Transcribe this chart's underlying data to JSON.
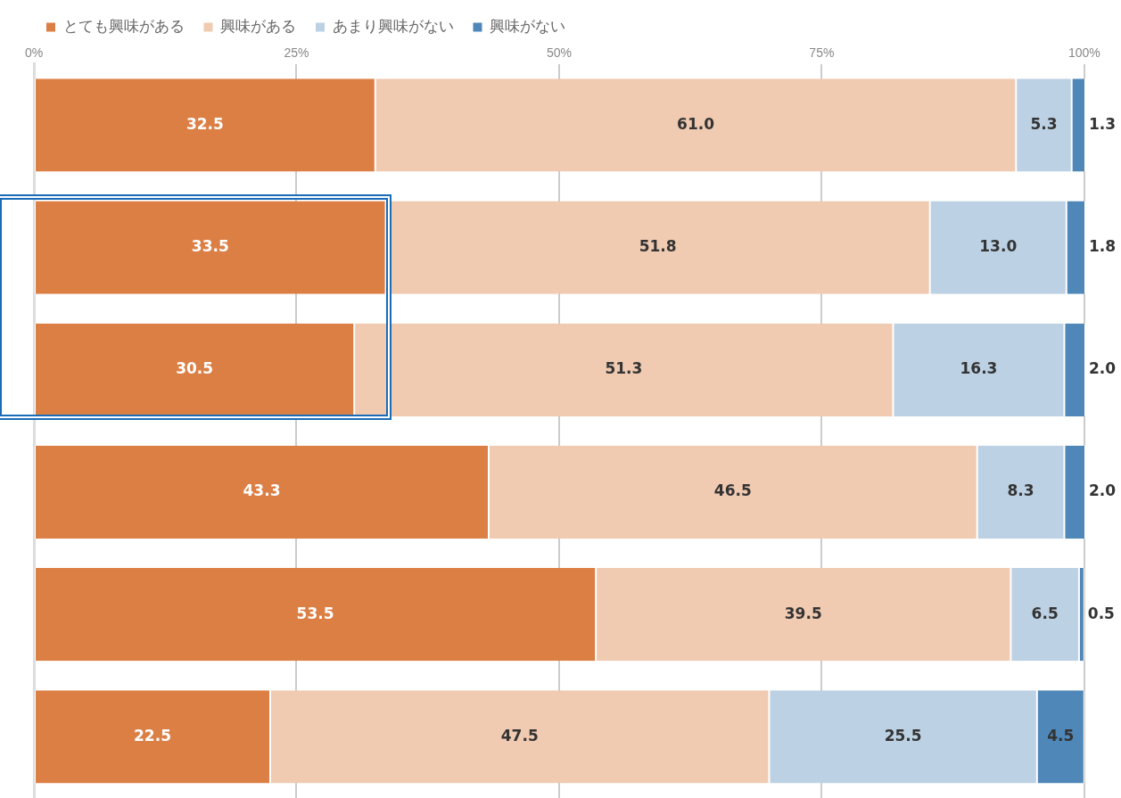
{
  "chart_data": {
    "type": "bar",
    "orientation": "horizontal",
    "stacked": true,
    "categories": [
      null,
      null,
      null,
      null,
      null,
      null
    ],
    "series": [
      {
        "name": "とても興味がある",
        "color": "#dc7f45",
        "values": [
          32.5,
          33.5,
          30.5,
          43.3,
          53.5,
          22.5
        ],
        "value_labels": [
          "32.5",
          "33.5",
          "30.5",
          "43.3",
          "53.5",
          "22.5"
        ]
      },
      {
        "name": "興味がある",
        "color": "#f0cab1",
        "values": [
          61.0,
          51.8,
          51.3,
          46.5,
          39.5,
          47.5
        ],
        "value_labels": [
          "61.0",
          "51.8",
          "51.3",
          "46.5",
          "39.5",
          "47.5"
        ]
      },
      {
        "name": "あまり興味がない",
        "color": "#bdd1e4",
        "values": [
          5.3,
          13.0,
          16.3,
          8.3,
          6.5,
          25.5
        ],
        "value_labels": [
          "5.3",
          "13.0",
          "16.3",
          "8.3",
          "6.5",
          "25.5"
        ]
      },
      {
        "name": "興味がない",
        "color": "#4f87b8",
        "values": [
          1.3,
          1.8,
          2.0,
          2.0,
          0.5,
          4.5
        ],
        "value_labels": [
          "1.3",
          "1.8",
          "2.0",
          "2.0",
          "0.5",
          "4.5"
        ]
      }
    ],
    "xlim": [
      0,
      100.1
    ],
    "xticks": [
      {
        "value": 0,
        "label": "0%"
      },
      {
        "value": 25,
        "label": "25%"
      },
      {
        "value": 50,
        "label": "50%"
      },
      {
        "value": 75,
        "label": "75%"
      },
      {
        "value": 100,
        "label": "100%"
      }
    ],
    "grid": "x",
    "legend": "top left"
  }
}
